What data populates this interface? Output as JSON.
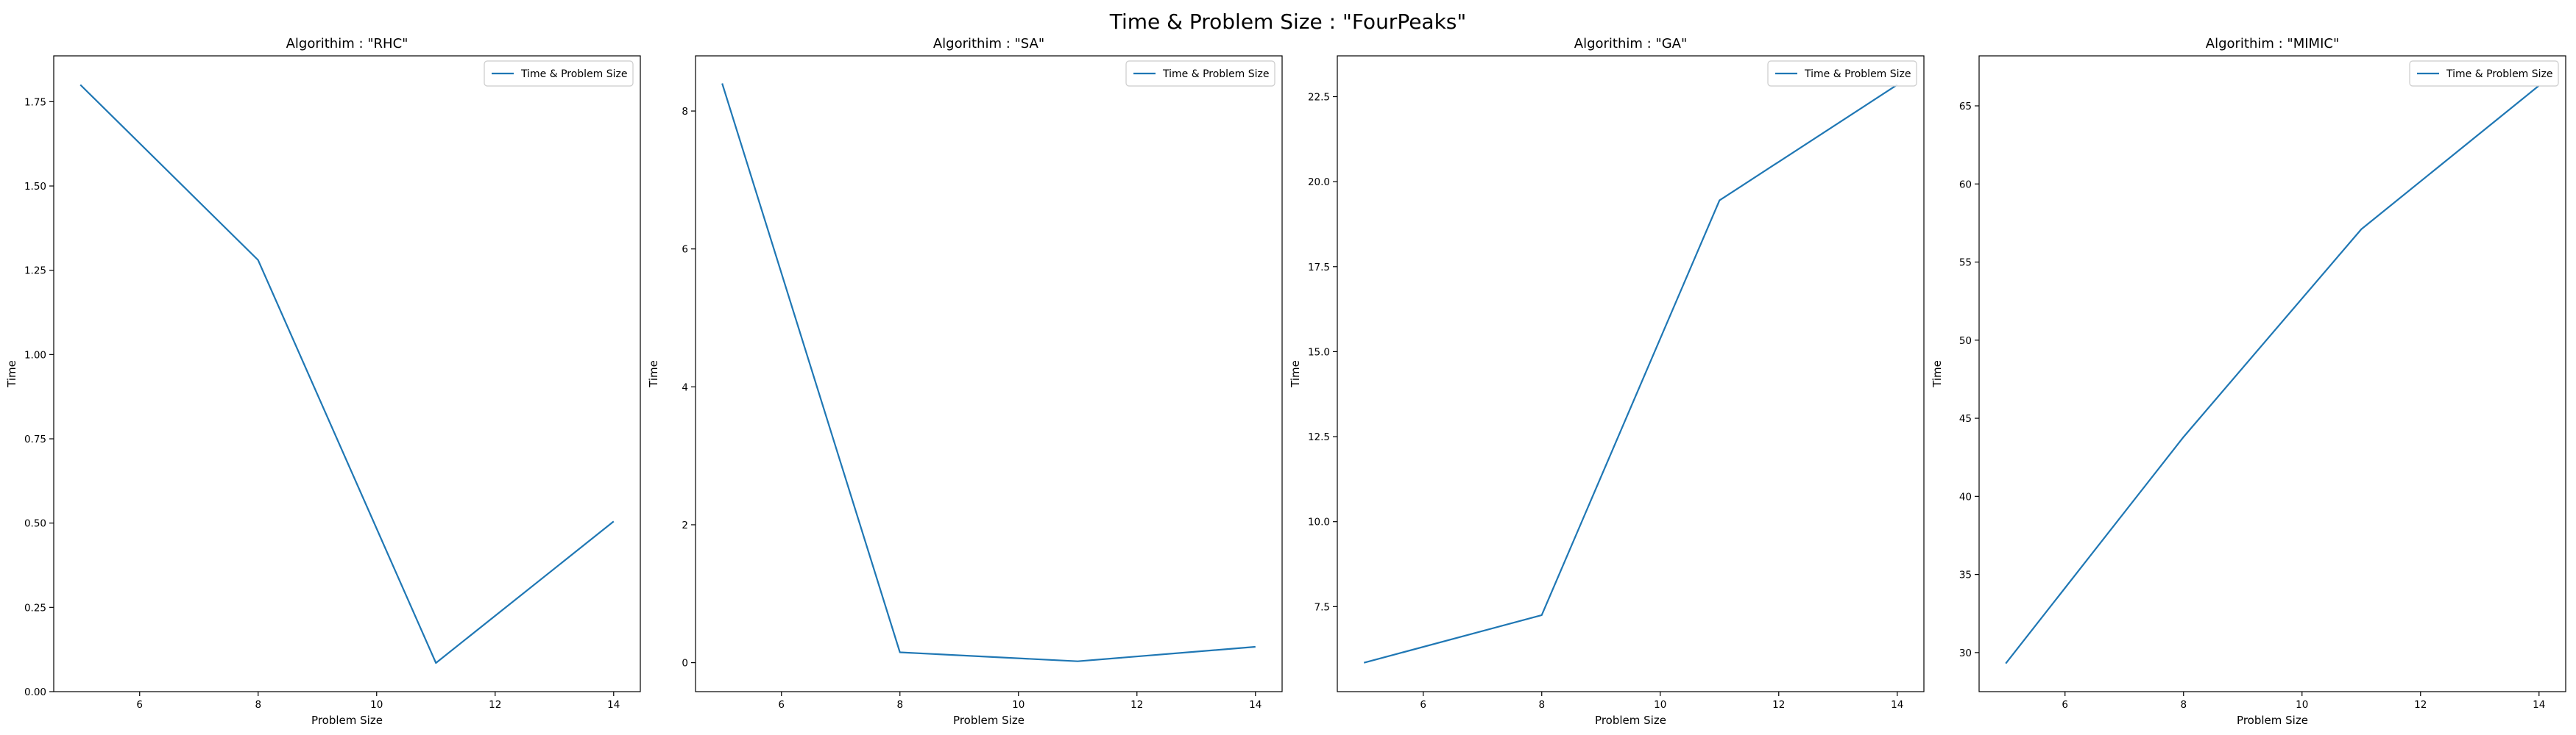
{
  "figure": {
    "suptitle": "Time & Problem Size : \"FourPeaks\""
  },
  "colors": {
    "line": "#1f77b4",
    "axes": "#000000",
    "legend_border": "#cccccc"
  },
  "chart_data": [
    {
      "type": "line",
      "title": "Algorithim : \"RHC\"",
      "xlabel": "Problem Size",
      "ylabel": "Time",
      "xlim": [
        4.55,
        14.45
      ],
      "ylim": [
        0,
        1.886
      ],
      "xticks": [
        6,
        8,
        10,
        12,
        14
      ],
      "yticks": [
        0.0,
        0.25,
        0.5,
        0.75,
        1.0,
        1.25,
        1.5,
        1.75
      ],
      "ytick_labels": [
        "0.00",
        "0.25",
        "0.50",
        "0.75",
        "1.00",
        "1.25",
        "1.50",
        "1.75"
      ],
      "legend": "upper right",
      "grid": false,
      "series": [
        {
          "name": "Time & Problem Size",
          "x": [
            5,
            8,
            11,
            14
          ],
          "y": [
            1.8,
            1.28,
            0.085,
            0.505
          ]
        }
      ]
    },
    {
      "type": "line",
      "title": "Algorithim : \"SA\"",
      "xlabel": "Problem Size",
      "ylabel": "Time",
      "xlim": [
        4.55,
        14.45
      ],
      "ylim": [
        -0.42,
        8.8
      ],
      "xticks": [
        6,
        8,
        10,
        12,
        14
      ],
      "yticks": [
        0,
        2,
        4,
        6,
        8
      ],
      "ytick_labels": [
        "0",
        "2",
        "4",
        "6",
        "8"
      ],
      "legend": "upper right",
      "grid": false,
      "series": [
        {
          "name": "Time & Problem Size",
          "x": [
            5,
            8,
            11,
            14
          ],
          "y": [
            8.4,
            0.15,
            0.02,
            0.23
          ]
        }
      ]
    },
    {
      "type": "line",
      "title": "Algorithim : \"GA\"",
      "xlabel": "Problem Size",
      "ylabel": "Time",
      "xlim": [
        4.55,
        14.45
      ],
      "ylim": [
        5.0,
        23.7
      ],
      "xticks": [
        6,
        8,
        10,
        12,
        14
      ],
      "yticks": [
        7.5,
        10.0,
        12.5,
        15.0,
        17.5,
        20.0,
        22.5
      ],
      "ytick_labels": [
        "7.5",
        "10.0",
        "12.5",
        "15.0",
        "17.5",
        "20.0",
        "22.5"
      ],
      "legend": "upper right",
      "grid": false,
      "series": [
        {
          "name": "Time & Problem Size",
          "x": [
            5,
            8,
            11,
            14
          ],
          "y": [
            5.85,
            7.25,
            19.45,
            22.85
          ]
        }
      ]
    },
    {
      "type": "line",
      "title": "Algorithim : \"MIMIC\"",
      "xlabel": "Problem Size",
      "ylabel": "Time",
      "xlim": [
        4.55,
        14.45
      ],
      "ylim": [
        27.5,
        68.2
      ],
      "xticks": [
        6,
        8,
        10,
        12,
        14
      ],
      "yticks": [
        30,
        35,
        40,
        45,
        50,
        55,
        60,
        65
      ],
      "ytick_labels": [
        "30",
        "35",
        "40",
        "45",
        "50",
        "55",
        "60",
        "65"
      ],
      "legend": "upper right",
      "grid": false,
      "series": [
        {
          "name": "Time & Problem Size",
          "x": [
            5,
            8,
            11,
            14
          ],
          "y": [
            29.3,
            43.8,
            57.1,
            66.3
          ]
        }
      ]
    }
  ]
}
